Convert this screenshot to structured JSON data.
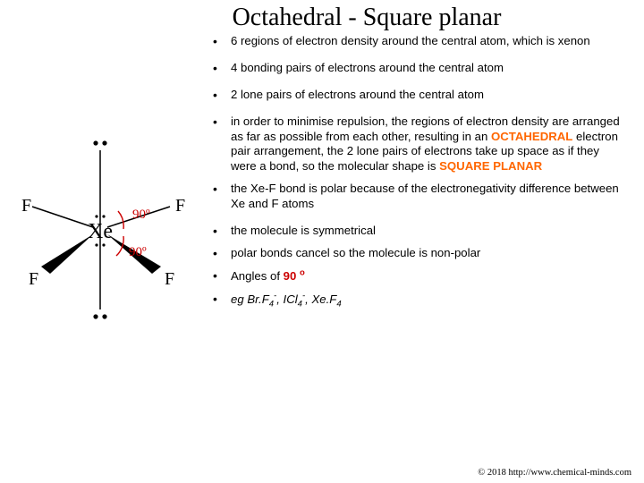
{
  "title": "Octahedral - Square planar",
  "bullets": [
    {
      "text": "6 regions of electron density around the central atom, which is xenon"
    },
    {
      "text": "4 bonding pairs of electrons around the central atom"
    },
    {
      "text": "2 lone pairs of electrons around the central atom"
    },
    {
      "html": "in order to minimise repulsion, the regions of electron density are arranged as far as possible from each other, resulting in an <span class='hl-oct'>OCTAHEDRAL</span> electron pair arrangement, the 2 lone pairs of electrons take up space as if they were a bond, so the molecular shape is <span class='hl-sq'>SQUARE PLANAR</span>"
    },
    {
      "text": "the Xe-F bond is polar because of the electronegativity difference between Xe and F atoms"
    },
    {
      "text": "the molecule is symmetrical"
    },
    {
      "text": "polar bonds cancel so the molecule is non-polar"
    },
    {
      "html": "Angles of <span class='hl-ang'>90</span> <sup class='hl-ang'>o</sup>"
    },
    {
      "html": "eg Br.F<sub>4</sub><sup>-</sup>, ICl<sub>4</sub><sup>-</sup>, Xe.F<sub>4</sub>",
      "italic": true
    }
  ],
  "diagram": {
    "center_label": "Xe",
    "outer_label": "F",
    "angle_label": "90º",
    "angle_color": "#cc0000",
    "text_color": "#000000",
    "line_color": "#000000",
    "font_family_serif": "Times New Roman"
  },
  "copyright": "© 2018 http://www.chemical-minds.com",
  "colors": {
    "orange": "#ff6600",
    "red": "#cc0000",
    "black": "#000000",
    "bg": "#ffffff"
  },
  "typography": {
    "title_fontsize": 28,
    "body_fontsize": 13.2,
    "copyright_fontsize": 10.5
  }
}
